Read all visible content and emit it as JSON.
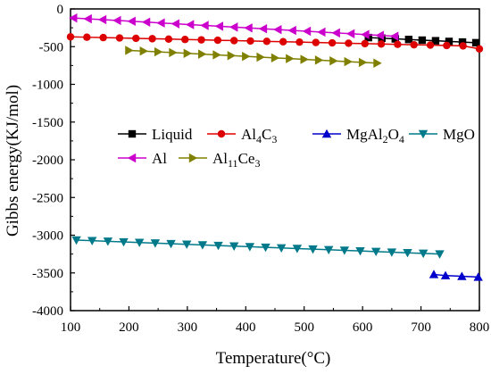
{
  "chart_data": {
    "type": "line",
    "title": "",
    "xlabel": "Temperature(°C)",
    "ylabel": "Gibbs energy(KJ/mol)",
    "xlim": [
      100,
      800
    ],
    "ylim": [
      -4000,
      0
    ],
    "xticks": [
      "100",
      "200",
      "300",
      "400",
      "500",
      "600",
      "700",
      "800"
    ],
    "yticks": [
      "0",
      "-500",
      "-1000",
      "-1500",
      "-2000",
      "-2500",
      "-3000",
      "-3500",
      "-4000"
    ],
    "xtick_values": [
      100,
      200,
      300,
      400,
      500,
      600,
      700,
      800
    ],
    "ytick_values": [
      0,
      -500,
      -1000,
      -1500,
      -2000,
      -2500,
      -3000,
      -3500,
      -4000
    ],
    "grid": false,
    "legend_position": "middle-left",
    "series": [
      {
        "name": "Liquid",
        "color": "#000000",
        "marker": "square",
        "x": [
          610,
          633,
          656,
          679,
          702,
          725,
          748,
          771,
          794
        ],
        "y": [
          -380,
          -388,
          -397,
          -405,
          -414,
          -422,
          -431,
          -439,
          -448
        ]
      },
      {
        "name": "Al4C3",
        "color": "#dd0000",
        "marker": "circle",
        "x": [
          100,
          128,
          156,
          184,
          212,
          240,
          268,
          296,
          324,
          352,
          380,
          408,
          436,
          464,
          492,
          520,
          548,
          576,
          604,
          632,
          660,
          688,
          716,
          744,
          772,
          800
        ],
        "y": [
          -370,
          -375,
          -380,
          -385,
          -390,
          -395,
          -400,
          -405,
          -410,
          -415,
          -420,
          -425,
          -430,
          -435,
          -440,
          -445,
          -450,
          -455,
          -460,
          -465,
          -470,
          -475,
          -480,
          -485,
          -490,
          -530
        ]
      },
      {
        "name": "MgAl2O4",
        "color": "#0000cc",
        "marker": "triangle-up",
        "x": [
          722,
          742,
          770,
          798
        ],
        "y": [
          -3520,
          -3535,
          -3545,
          -3555
        ]
      },
      {
        "name": "MgO",
        "color": "#007a8a",
        "marker": "triangle-down",
        "x": [
          110,
          137,
          164,
          191,
          218,
          245,
          272,
          299,
          326,
          353,
          380,
          407,
          434,
          461,
          488,
          515,
          542,
          569,
          596,
          623,
          650,
          677,
          704,
          732
        ],
        "y": [
          -3065,
          -3073,
          -3081,
          -3089,
          -3097,
          -3105,
          -3113,
          -3121,
          -3129,
          -3137,
          -3145,
          -3153,
          -3161,
          -3169,
          -3177,
          -3185,
          -3193,
          -3201,
          -3209,
          -3217,
          -3225,
          -3233,
          -3241,
          -3250
        ]
      },
      {
        "name": "Al",
        "color": "#cc00cc",
        "marker": "triangle-left",
        "x": [
          105,
          130,
          155,
          180,
          205,
          230,
          255,
          280,
          305,
          330,
          355,
          380,
          405,
          430,
          455,
          480,
          505,
          530,
          555,
          580,
          605,
          630,
          655
        ],
        "y": [
          -120,
          -131,
          -142,
          -153,
          -164,
          -175,
          -186,
          -197,
          -208,
          -219,
          -230,
          -241,
          -252,
          -263,
          -274,
          -285,
          -296,
          -307,
          -318,
          -329,
          -340,
          -351,
          -362
        ]
      },
      {
        "name": "Al11Ce3",
        "color": "#808000",
        "marker": "triangle-right",
        "x": [
          200,
          225,
          250,
          275,
          300,
          325,
          350,
          375,
          400,
          425,
          450,
          475,
          500,
          525,
          550,
          575,
          600,
          625
        ],
        "y": [
          -550,
          -559,
          -569,
          -579,
          -589,
          -599,
          -609,
          -619,
          -629,
          -639,
          -649,
          -659,
          -669,
          -679,
          -689,
          -699,
          -709,
          -719
        ]
      }
    ]
  },
  "legend": {
    "items": [
      {
        "main": "Liquid",
        "sub": []
      },
      {
        "main": "Al",
        "sub": [
          {
            "t": "4",
            "sub": true
          },
          {
            "t": "C",
            "sub": false
          },
          {
            "t": "3",
            "sub": true
          }
        ]
      },
      {
        "main": "MgAl",
        "sub": [
          {
            "t": "2",
            "sub": true
          },
          {
            "t": "O",
            "sub": false
          },
          {
            "t": "4",
            "sub": true
          }
        ]
      },
      {
        "main": "MgO",
        "sub": []
      },
      {
        "main": "Al",
        "sub": []
      },
      {
        "main": "Al",
        "sub": [
          {
            "t": "11",
            "sub": true
          },
          {
            "t": "Ce",
            "sub": false
          },
          {
            "t": "3",
            "sub": true
          }
        ]
      }
    ]
  }
}
